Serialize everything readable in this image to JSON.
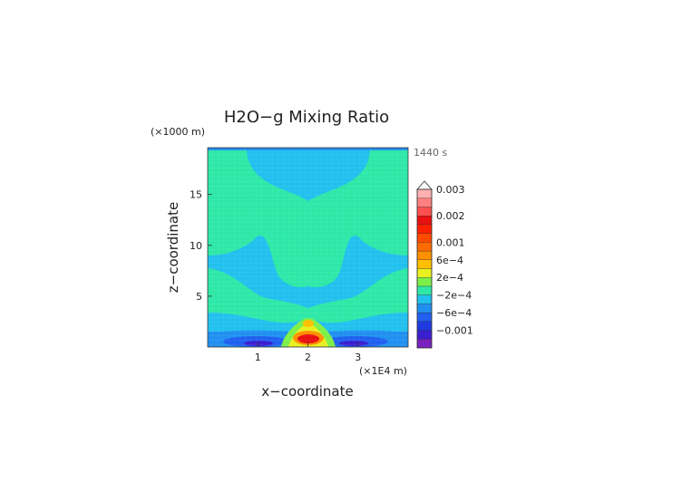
{
  "chart_data": {
    "type": "heatmap",
    "title": "H2O−g Mixing Ratio",
    "time_label": "1440 s",
    "y_units": "(×1000 m)",
    "x_units": "(×1E4 m)",
    "xlabel": "x−coordinate",
    "ylabel": "z−coordinate",
    "xlim": [
      0,
      4
    ],
    "ylim": [
      0,
      19.6
    ],
    "x_ticks": [
      {
        "value": 1,
        "label": "1"
      },
      {
        "value": 2,
        "label": "2"
      },
      {
        "value": 3,
        "label": "3"
      }
    ],
    "y_ticks": [
      {
        "value": 5,
        "label": "5"
      },
      {
        "value": 10,
        "label": "10"
      },
      {
        "value": 15,
        "label": "15"
      }
    ],
    "colorbar": {
      "levels": [
        {
          "color": "#7a1fc0"
        },
        {
          "color": "#3a1fd0",
          "label": "−0.001"
        },
        {
          "color": "#1f3be0"
        },
        {
          "color": "#2060f0",
          "label": "−6e−4"
        },
        {
          "color": "#2090f0"
        },
        {
          "color": "#22c0ee",
          "label": "−2e−4"
        },
        {
          "color": "#2ee8a8"
        },
        {
          "color": "#7cf04a",
          "label": "2e−4"
        },
        {
          "color": "#e8f020"
        },
        {
          "color": "#ffc000",
          "label": "6e−4"
        },
        {
          "color": "#ff9000"
        },
        {
          "color": "#ff6a00",
          "label": "0.001"
        },
        {
          "color": "#ff4a00"
        },
        {
          "color": "#ff2000"
        },
        {
          "color": "#e81010",
          "label": "0.002"
        },
        {
          "color": "#ff5050"
        },
        {
          "color": "#ff8080"
        },
        {
          "color": "#ffb0b0",
          "label": "0.003"
        }
      ]
    },
    "regions": [
      {
        "level": "background",
        "color": "#22c0ee"
      },
      {
        "level": "upper-band",
        "color": "#2ee8a8"
      },
      {
        "level": "lower-band",
        "color": "#2ee8a8"
      },
      {
        "level": "surface-band",
        "color": "#2090f0"
      },
      {
        "level": "surface-low",
        "color": "#2060f0"
      },
      {
        "level": "surface-min",
        "color": "#3a1fd0"
      },
      {
        "level": "plume-outer",
        "color": "#7cf04a"
      },
      {
        "level": "plume-yellow",
        "color": "#e8f020"
      },
      {
        "level": "plume-orange",
        "color": "#ff9000"
      },
      {
        "level": "plume-core",
        "color": "#e81010"
      }
    ]
  }
}
